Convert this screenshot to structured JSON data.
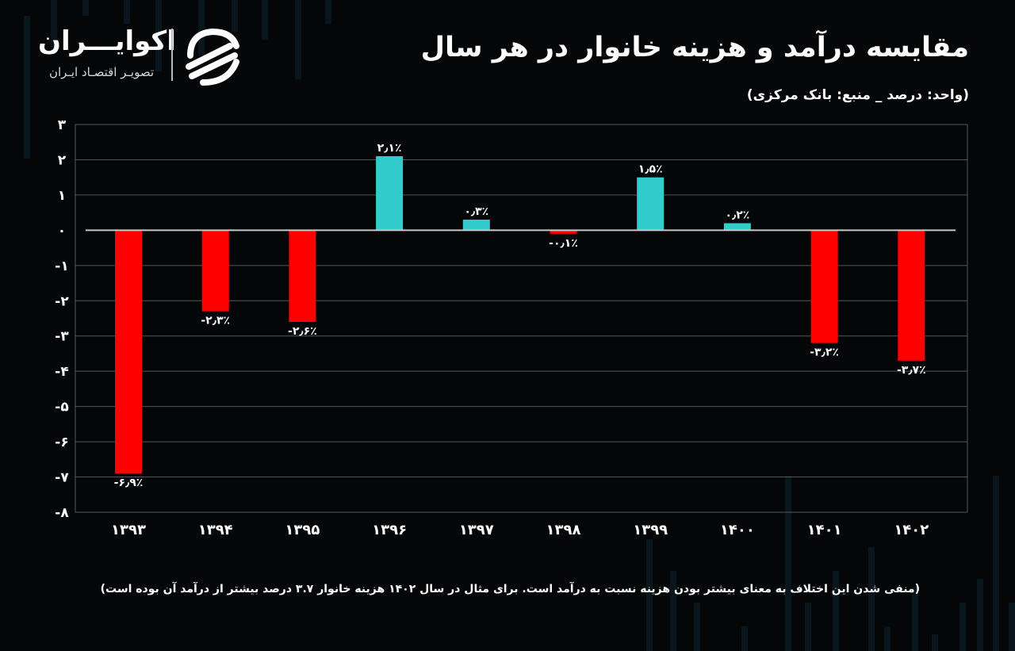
{
  "brand": {
    "name": "اکوایـــران",
    "tagline": "تصویـر اقتصـاد ایـران",
    "logo_icon": "ecoiran-swirl-logo",
    "accent": "#ffffff"
  },
  "header": {
    "title": "مقایسه درآمد و هزینه خانوار در هر سال",
    "subtitle": "(واحد: درصد _ منبع: بانک مرکزی)"
  },
  "footnote": "(منفی شدن این اختلاف به معنای بیشتر بودن هزینه نسبت به درآمد است. برای مثال در سال ۱۴۰۲ هزینه خانوار ۳.۷ درصد بیشتر از درآمد آن بوده است)",
  "chart_data": {
    "type": "bar",
    "categories": [
      "۱۳۹۳",
      "۱۳۹۴",
      "۱۳۹۵",
      "۱۳۹۶",
      "۱۳۹۷",
      "۱۳۹۸",
      "۱۳۹۹",
      "۱۴۰۰",
      "۱۴۰۱",
      "۱۴۰۲"
    ],
    "values": [
      -6.9,
      -2.3,
      -2.6,
      2.1,
      0.3,
      -0.1,
      1.5,
      0.2,
      -3.2,
      -3.7
    ],
    "data_labels": [
      "-۶٫۹٪",
      "-۲٫۳٪",
      "-۲٫۶٪",
      "۲٫۱٪",
      "۰٫۳٪",
      "-۰٫۱٪",
      "۱٫۵٪",
      "۰٫۲٪",
      "-۳٫۲٪",
      "-۳٫۷٪"
    ],
    "y_ticks": [
      3,
      2,
      1,
      0,
      -1,
      -2,
      -3,
      -4,
      -5,
      -6,
      -7,
      -8
    ],
    "y_tick_labels": [
      "۳",
      "۲",
      "۱",
      "۰",
      "-۱",
      "-۲",
      "-۳",
      "-۴",
      "-۵",
      "-۶",
      "-۷",
      "-۸"
    ],
    "ylim": [
      -8,
      3
    ],
    "grid": true,
    "legend": "none",
    "positive_color": "#33cccc",
    "negative_color": "#ff0000",
    "grid_color": "#555555",
    "background": "#050608"
  }
}
